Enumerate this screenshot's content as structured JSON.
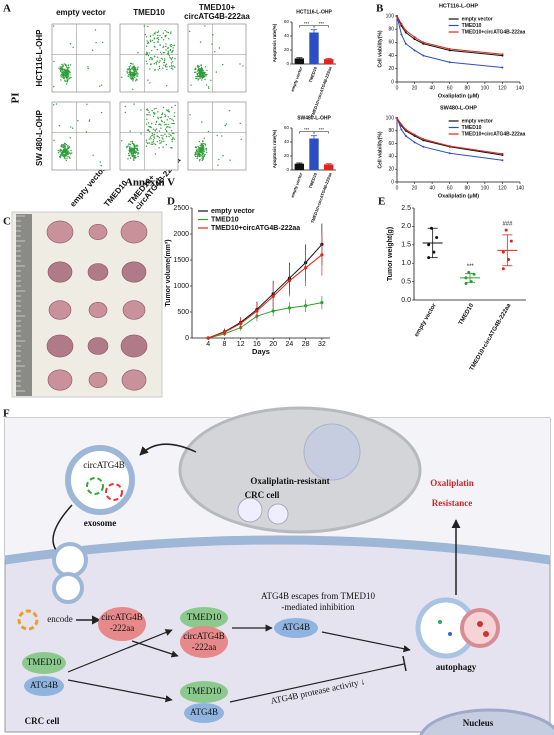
{
  "panel_labels": [
    "A",
    "B",
    "C",
    "D",
    "E",
    "F"
  ],
  "flow": {
    "columns": [
      "empty vector",
      "TMED10",
      "TMED10+",
      "circATG4B-222aa"
    ],
    "rows": [
      "HCT116-L-OHP",
      "SW 480-L-OHP"
    ],
    "y_label": "PI",
    "x_label": "Annexin V"
  },
  "tumor_photo": {
    "labels": [
      "empty vector",
      "TMED10",
      "TMED10+",
      "circATG4B-222aa"
    ]
  },
  "chart_data": [
    {
      "type": "bar",
      "title": "HCT116-L-OHP",
      "y_label": "Apoptosis rate(%)",
      "categories": [
        "empty vector",
        "TMED10",
        "TMED10+circATG4B-222aa"
      ],
      "values": [
        8,
        45,
        7
      ],
      "errors": [
        1,
        4,
        1
      ],
      "colors": [
        "#111111",
        "#2b4fc2",
        "#e0241b"
      ],
      "ylim": [
        0,
        60
      ],
      "yticks": [
        0,
        20,
        40,
        60
      ],
      "annotations": [
        "***",
        "***"
      ]
    },
    {
      "type": "bar",
      "title": "SW480-L-OHP",
      "y_label": "Apoptosis rate(%)",
      "categories": [
        "empty vector",
        "TMED10",
        "TMED10+circATG4B-222aa"
      ],
      "values": [
        9,
        45,
        8
      ],
      "errors": [
        1,
        4,
        1
      ],
      "colors": [
        "#111111",
        "#2b4fc2",
        "#e0241b"
      ],
      "ylim": [
        0,
        60
      ],
      "yticks": [
        0,
        20,
        40,
        60
      ],
      "annotations": [
        "***",
        "***"
      ]
    },
    {
      "type": "line",
      "title": "HCT116-L-OHP",
      "x_label": "Oxaliplatin (μM)",
      "y_label": "Cell viability(%)",
      "x": [
        0,
        5,
        10,
        20,
        30,
        60,
        120
      ],
      "xlim": [
        0,
        140
      ],
      "xticks": [
        0,
        20,
        40,
        60,
        80,
        100,
        120,
        140
      ],
      "ylim": [
        0,
        100
      ],
      "yticks": [
        0,
        20,
        40,
        60,
        80,
        100
      ],
      "legend": "upper right",
      "series": [
        {
          "name": "empty vector",
          "color": "#111111",
          "values": [
            100,
            85,
            75,
            65,
            58,
            48,
            40
          ]
        },
        {
          "name": "TMED10",
          "color": "#2b4fc2",
          "values": [
            100,
            72,
            58,
            48,
            40,
            30,
            22
          ]
        },
        {
          "name": "TMED10+circATG4B-222aa",
          "color": "#e0241b",
          "values": [
            100,
            88,
            78,
            68,
            60,
            50,
            42
          ]
        }
      ]
    },
    {
      "type": "line",
      "title": "SW480-L-OHP",
      "x_label": "Oxaliplatin (μM)",
      "y_label": "Cell viability(%)",
      "x": [
        0,
        5,
        10,
        20,
        30,
        60,
        120
      ],
      "xlim": [
        0,
        140
      ],
      "xticks": [
        0,
        20,
        40,
        60,
        80,
        100,
        120,
        140
      ],
      "ylim": [
        0,
        100
      ],
      "yticks": [
        0,
        20,
        40,
        60,
        80,
        100
      ],
      "legend": "upper right",
      "series": [
        {
          "name": "empty vector",
          "color": "#111111",
          "values": [
            100,
            88,
            80,
            72,
            65,
            55,
            42
          ]
        },
        {
          "name": "TMED10",
          "color": "#2b4fc2",
          "values": [
            100,
            82,
            72,
            62,
            55,
            45,
            34
          ]
        },
        {
          "name": "TMED10+circATG4B-222aa",
          "color": "#e0241b",
          "values": [
            100,
            90,
            82,
            74,
            67,
            56,
            44
          ]
        }
      ]
    },
    {
      "type": "line",
      "x_label": "Days",
      "y_label": "Tumor volume(mm³)",
      "x": [
        4,
        8,
        12,
        16,
        20,
        24,
        28,
        32
      ],
      "xlim": [
        0,
        34
      ],
      "xticks": [
        4,
        8,
        12,
        16,
        20,
        24,
        28,
        32
      ],
      "ylim": [
        0,
        2500
      ],
      "yticks": [
        0,
        500,
        1000,
        1500,
        2000,
        2500
      ],
      "legend": "upper left",
      "series": [
        {
          "name": "empty vector",
          "color": "#111111",
          "values": [
            0,
            120,
            300,
            550,
            850,
            1150,
            1450,
            1800
          ],
          "errors": [
            0,
            60,
            100,
            150,
            250,
            300,
            350,
            400
          ]
        },
        {
          "name": "TMED10",
          "color": "#2ca02c",
          "values": [
            0,
            80,
            200,
            420,
            520,
            580,
            620,
            680
          ],
          "errors": [
            0,
            40,
            60,
            100,
            100,
            110,
            120,
            130
          ]
        },
        {
          "name": "TMED10+circATG4B-222aa",
          "color": "#e0241b",
          "values": [
            0,
            110,
            280,
            520,
            800,
            1100,
            1350,
            1600
          ],
          "errors": [
            0,
            60,
            100,
            150,
            250,
            300,
            350,
            400
          ]
        }
      ]
    },
    {
      "type": "dot",
      "y_label": "Tumor weight(g)",
      "categories": [
        "empty vector",
        "TMED10",
        "TMED10+circATG4B-222aa"
      ],
      "values": [
        1.55,
        0.6,
        1.35
      ],
      "errors": [
        0.4,
        0.12,
        0.42
      ],
      "points": [
        [
          1.95,
          1.7,
          1.5,
          1.3,
          1.15
        ],
        [
          0.75,
          0.7,
          0.6,
          0.5,
          0.45
        ],
        [
          1.9,
          1.6,
          1.3,
          1.1,
          0.85
        ]
      ],
      "colors": [
        "#111111",
        "#2ca02c",
        "#e0241b"
      ],
      "ylim": [
        0,
        2.5
      ],
      "yticks": [
        {
          "value": 0,
          "label": "0.0"
        },
        {
          "value": 0.5,
          "label": "0.5"
        },
        {
          "value": 1,
          "label": "1.0"
        },
        {
          "value": 1.5,
          "label": "1.5"
        },
        {
          "value": 2,
          "label": "2.0"
        },
        {
          "value": 2.5,
          "label": "2.5"
        }
      ],
      "annotations": [
        null,
        "***",
        "###"
      ]
    }
  ],
  "diagram": {
    "cell_title": [
      "Oxaliplatin-resistant",
      "CRC cell"
    ],
    "exosome_cargo": "circATG4B",
    "exosome": "exosome",
    "resistance": [
      "Oxaliplatin",
      "Resistance"
    ],
    "encode": "encode",
    "peptide": [
      "circATG4B",
      "-222aa"
    ],
    "complex_tmed10": "TMED10",
    "complex_peptide": [
      "circATG4B",
      "-222aa"
    ],
    "free_atg4b": "ATG4B",
    "escape": [
      "ATG4B escapes from TMED10",
      "-mediated inhibition"
    ],
    "tmed10": "TMED10",
    "atg4b": "ATG4B",
    "bound_tmed10": "TMED10",
    "bound_atg4b": "ATG4B",
    "activity": "ATG4B protease activity ↓",
    "autophagy": "autophagy",
    "crc_cell": "CRC cell",
    "nucleus": "Nucleus"
  }
}
